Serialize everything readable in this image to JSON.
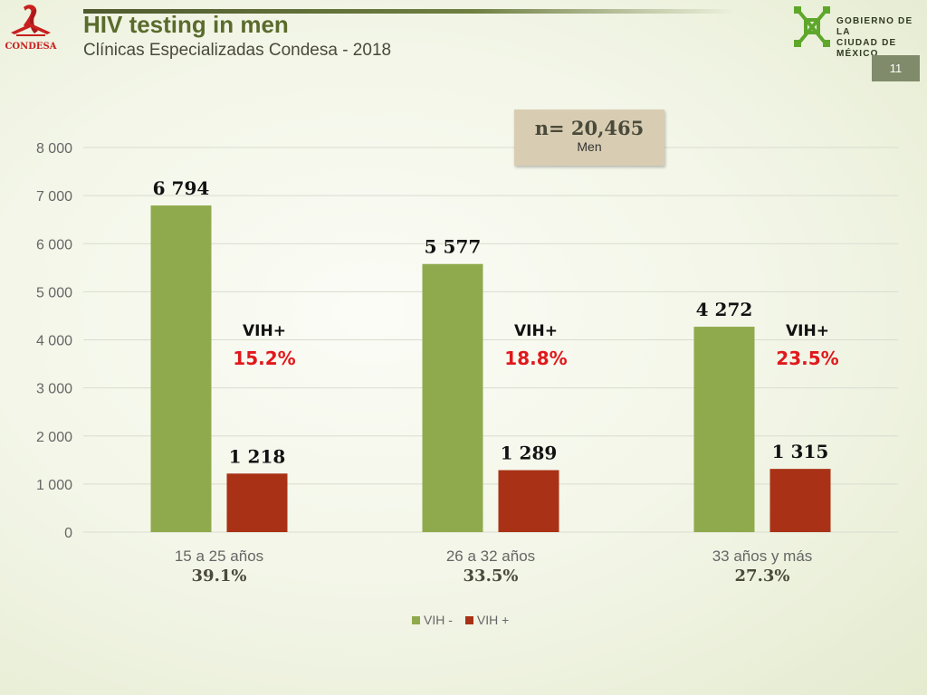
{
  "header": {
    "title": "HIV testing in men",
    "subtitle": "Clínicas Especializadas Condesa - 2018",
    "left_logo_text": "CONDESA",
    "right_logo_text_line1": "GOBIERNO DE LA",
    "right_logo_text_line2": "CIUDAD DE MÉXICO",
    "page_number": "11"
  },
  "sample": {
    "n_label": "n= 20,465",
    "n_sub": "Men"
  },
  "colors": {
    "vih_neg": "#8faa4c",
    "vih_pos": "#a93216",
    "pct_red": "#e0191c",
    "grid": "#d9dccf",
    "accent_green": "#5a6b2c"
  },
  "chart_data": {
    "type": "bar",
    "categories": [
      "15 a 25 años",
      "26 a 32 años",
      "33 años y más"
    ],
    "category_shares": [
      "39.1%",
      "33.5%",
      "27.3%"
    ],
    "series": [
      {
        "name": "VIH -",
        "values": [
          6794,
          5577,
          4272
        ],
        "labels": [
          "6 794",
          "5 577",
          "4 272"
        ]
      },
      {
        "name": "VIH +",
        "values": [
          1218,
          1289,
          1315
        ],
        "labels": [
          "1 218",
          "1 289",
          "1 315"
        ]
      }
    ],
    "annotations": [
      {
        "label": "VIH+",
        "value": "15.2%"
      },
      {
        "label": "VIH+",
        "value": "18.8%"
      },
      {
        "label": "VIH+",
        "value": "23.5%"
      }
    ],
    "ylim": [
      0,
      8000
    ],
    "yticks": [
      0,
      1000,
      2000,
      3000,
      4000,
      5000,
      6000,
      7000,
      8000
    ],
    "ytick_labels": [
      "0",
      "1 000",
      "2 000",
      "3 000",
      "4 000",
      "5 000",
      "6 000",
      "7 000",
      "8 000"
    ],
    "grid": true,
    "legend_position": "bottom"
  }
}
